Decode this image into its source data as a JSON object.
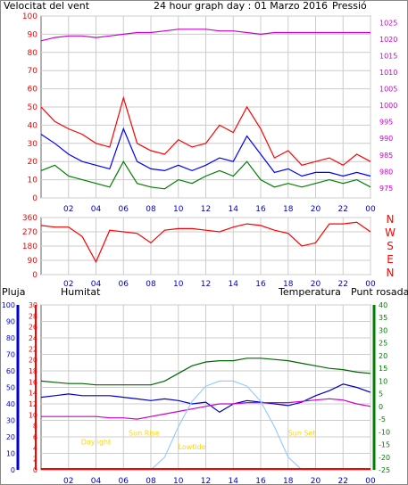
{
  "title": "24 hour graph day : 01 Marzo 2016",
  "colors": {
    "wind": "#ff0000",
    "wind_avg": "#0000ff",
    "wind_green": "#008000",
    "pressure": "#cc00cc",
    "humidity": "#0000cc",
    "temperature": "#006600",
    "dewpoint": "#cc00cc",
    "rain": "#ff0000",
    "sun": "#99ccff",
    "annot": "#ffd700",
    "grid": "#cccccc",
    "axis": "#0000cc"
  },
  "labels": {
    "wind_speed": "Velocitat del vent",
    "pressure": "Pressió",
    "rain": "Pluja",
    "humidity": "Humitat",
    "temperature": "Temperatura",
    "dewpoint": "Punt rosada"
  },
  "x_ticks": [
    "02",
    "04",
    "06",
    "08",
    "10",
    "12",
    "14",
    "16",
    "18",
    "20",
    "22",
    "00"
  ],
  "chart_data": [
    {
      "type": "line",
      "name_text": "wind-pressure",
      "x": [
        0,
        1,
        2,
        3,
        4,
        5,
        6,
        7,
        8,
        9,
        10,
        11,
        12,
        13,
        14,
        15,
        16,
        17,
        18,
        19,
        20,
        21,
        22,
        23,
        24
      ],
      "xlim": [
        0,
        24
      ],
      "left_ylim": [
        0,
        100
      ],
      "left_ticks": [
        0,
        10,
        20,
        30,
        40,
        50,
        60,
        70,
        80,
        90,
        100
      ],
      "right_ylim": [
        972,
        1027
      ],
      "right_ticks": [
        975,
        980,
        985,
        990,
        995,
        1000,
        1005,
        1010,
        1015,
        1020,
        1025
      ],
      "series": [
        {
          "key": "gust",
          "color_key": "wind",
          "axis": "left",
          "values": [
            50,
            42,
            38,
            35,
            30,
            28,
            55,
            30,
            26,
            24,
            32,
            28,
            30,
            40,
            36,
            50,
            38,
            22,
            26,
            18,
            20,
            22,
            18,
            24,
            20
          ]
        },
        {
          "key": "avg",
          "color_key": "wind_avg",
          "axis": "left",
          "values": [
            35,
            30,
            24,
            20,
            18,
            16,
            38,
            20,
            16,
            15,
            18,
            15,
            18,
            22,
            20,
            34,
            24,
            14,
            16,
            12,
            14,
            14,
            12,
            14,
            12
          ]
        },
        {
          "key": "low",
          "color_key": "wind_green",
          "axis": "left",
          "values": [
            15,
            18,
            12,
            10,
            8,
            6,
            20,
            8,
            6,
            5,
            10,
            8,
            12,
            15,
            12,
            20,
            10,
            6,
            8,
            6,
            8,
            10,
            8,
            10,
            6
          ]
        },
        {
          "key": "pressure",
          "color_key": "pressure",
          "axis": "right",
          "values": [
            1019.5,
            1020.5,
            1021,
            1021,
            1020.5,
            1021,
            1021.5,
            1022,
            1022,
            1022.5,
            1023,
            1023,
            1023,
            1022.5,
            1022.5,
            1022,
            1021.5,
            1022,
            1022,
            1022,
            1022,
            1022,
            1022,
            1022,
            1022
          ]
        }
      ]
    },
    {
      "type": "line",
      "name_text": "wind-direction",
      "x": [
        0,
        1,
        2,
        3,
        4,
        5,
        6,
        7,
        8,
        9,
        10,
        11,
        12,
        13,
        14,
        15,
        16,
        17,
        18,
        19,
        20,
        21,
        22,
        23,
        24
      ],
      "xlim": [
        0,
        24
      ],
      "ylim": [
        0,
        360
      ],
      "left_ticks": [
        0,
        90,
        180,
        270,
        360
      ],
      "right_ticks": [
        "N",
        "W",
        "S",
        "E",
        "N"
      ],
      "series": [
        {
          "key": "direction",
          "color_key": "wind",
          "values": [
            310,
            300,
            300,
            240,
            80,
            280,
            270,
            260,
            200,
            280,
            290,
            290,
            280,
            270,
            300,
            320,
            310,
            280,
            260,
            180,
            200,
            320,
            320,
            330,
            270
          ]
        }
      ]
    },
    {
      "type": "line",
      "name_text": "rain-humidity-temperature",
      "x": [
        0,
        1,
        2,
        3,
        4,
        5,
        6,
        7,
        8,
        9,
        10,
        11,
        12,
        13,
        14,
        15,
        16,
        17,
        18,
        19,
        20,
        21,
        22,
        23,
        24
      ],
      "xlim": [
        0,
        24
      ],
      "rain_ticks": [
        0,
        2,
        4,
        6,
        8,
        10,
        12,
        14,
        16,
        18,
        20,
        22,
        24,
        26,
        28,
        30
      ],
      "humidity_ticks": [
        0,
        10,
        20,
        30,
        40,
        50,
        60,
        70,
        80,
        90,
        100
      ],
      "temp_ylim": [
        -25,
        40
      ],
      "temp_ticks": [
        -25,
        -20,
        -15,
        -10,
        -5,
        0,
        5,
        10,
        15,
        20,
        25,
        30,
        35,
        40
      ],
      "series": [
        {
          "key": "temperature",
          "color_key": "temperature",
          "axis": "temp",
          "values": [
            10,
            9.5,
            9,
            9,
            8.5,
            8.5,
            8.5,
            8.5,
            8.5,
            10,
            13,
            16,
            17.5,
            18,
            18,
            19,
            19,
            18.5,
            18,
            17,
            16,
            15,
            14.5,
            13.5,
            13
          ]
        },
        {
          "key": "humidity",
          "color_key": "humidity",
          "axis": "humidity",
          "values": [
            44,
            45,
            46,
            45,
            45,
            45,
            44,
            43,
            42,
            43,
            42,
            40,
            41,
            35,
            40,
            42,
            41,
            40,
            39,
            41,
            45,
            48,
            52,
            50,
            47
          ]
        },
        {
          "key": "dewpoint",
          "color_key": "dewpoint",
          "axis": "temp",
          "values": [
            -4,
            -4,
            -4,
            -4,
            -4,
            -4.5,
            -4.5,
            -5,
            -4,
            -3,
            -2,
            -1,
            0,
            1,
            1,
            1.5,
            1.5,
            1.5,
            1.5,
            2,
            2.5,
            3,
            2.5,
            1,
            0
          ]
        },
        {
          "key": "sun_elevation",
          "color_key": "sun",
          "axis": "temp",
          "values": [
            -25,
            -25,
            -25,
            -25,
            -25,
            -25,
            -25,
            -25,
            -25,
            -20,
            -8,
            2,
            8,
            10,
            10,
            8,
            2,
            -8,
            -20,
            -25,
            -25,
            -25,
            -25,
            -25,
            -25
          ]
        }
      ],
      "annotations": [
        {
          "text": "Daylight",
          "x": 4.0,
          "temp": -15
        },
        {
          "text": "Sun Rise",
          "x": 7.5,
          "temp": -11.5
        },
        {
          "text": "Lowtide",
          "x": 11.0,
          "temp": -17
        },
        {
          "text": "Sun Set",
          "x": 19.0,
          "temp": -11.5
        }
      ]
    }
  ]
}
